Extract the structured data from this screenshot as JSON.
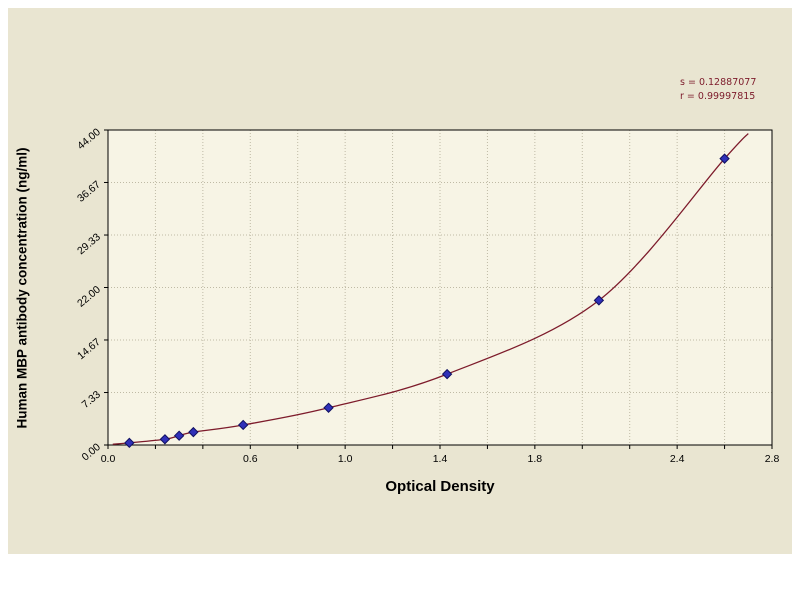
{
  "panel": {
    "background": "#e9e5d1",
    "plot_background": "#f7f4e5",
    "grid_color": "#bfbaa5",
    "axis_color": "#000000"
  },
  "annotations": {
    "s_label": "s = 0.12887077",
    "r_label": "r = 0.99997815",
    "color": "#7d1b2b"
  },
  "chart_data": {
    "type": "scatter",
    "title": "",
    "xlabel": "Optical Density",
    "ylabel": "Human MBP antibody concentration (ng/ml)",
    "xlim": [
      0,
      2.8
    ],
    "ylim": [
      0,
      44
    ],
    "grid": true,
    "legend": "none",
    "x_tick_labels": [
      "0.0",
      "0.6",
      "1.0",
      "1.4",
      "1.8",
      "2.4",
      "2.8"
    ],
    "x_tick_values": [
      0.0,
      0.6,
      1.0,
      1.4,
      1.8,
      2.4,
      2.8
    ],
    "x_minor_step": 0.2,
    "y_tick_labels": [
      "0.00",
      "7.33",
      "14.67",
      "22.00",
      "29.33",
      "36.67",
      "44.00"
    ],
    "y_tick_values": [
      0,
      7.33,
      14.67,
      22.0,
      29.33,
      36.67,
      44.0
    ],
    "points": [
      {
        "x": 0.09,
        "y": 0.3
      },
      {
        "x": 0.24,
        "y": 0.8
      },
      {
        "x": 0.3,
        "y": 1.3
      },
      {
        "x": 0.36,
        "y": 1.8
      },
      {
        "x": 0.57,
        "y": 2.8
      },
      {
        "x": 0.93,
        "y": 5.2
      },
      {
        "x": 1.43,
        "y": 9.9
      },
      {
        "x": 2.07,
        "y": 20.2
      },
      {
        "x": 2.6,
        "y": 40.0
      }
    ],
    "curve": {
      "color": "#7d1b2b",
      "start": {
        "x": 0.02,
        "y": 0.1
      },
      "end": {
        "x": 2.7,
        "y": 43.5
      }
    },
    "marker": {
      "shape": "diamond",
      "fill": "#3030b8",
      "stroke": "#101060",
      "size": 4.5
    }
  }
}
